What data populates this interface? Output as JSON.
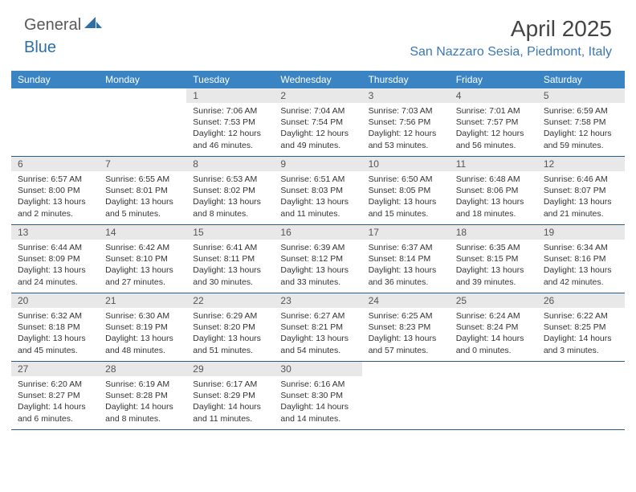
{
  "logo": {
    "part1": "General",
    "part2": "Blue"
  },
  "title": "April 2025",
  "location": "San Nazzaro Sesia, Piedmont, Italy",
  "colors": {
    "header_bg": "#3a84c4",
    "header_text": "#ffffff",
    "daynum_bg": "#e8e8e8",
    "daynum_text": "#555555",
    "row_border": "#2b5d8a",
    "location_text": "#3a78b5",
    "title_text": "#444444",
    "body_text": "#333333",
    "logo_gray": "#5a5a5a",
    "logo_blue": "#2f6fa8"
  },
  "weekdays": [
    "Sunday",
    "Monday",
    "Tuesday",
    "Wednesday",
    "Thursday",
    "Friday",
    "Saturday"
  ],
  "weeks": [
    [
      {
        "n": "",
        "sunrise": "",
        "sunset": "",
        "daylight": ""
      },
      {
        "n": "",
        "sunrise": "",
        "sunset": "",
        "daylight": ""
      },
      {
        "n": "1",
        "sunrise": "Sunrise: 7:06 AM",
        "sunset": "Sunset: 7:53 PM",
        "daylight": "Daylight: 12 hours and 46 minutes."
      },
      {
        "n": "2",
        "sunrise": "Sunrise: 7:04 AM",
        "sunset": "Sunset: 7:54 PM",
        "daylight": "Daylight: 12 hours and 49 minutes."
      },
      {
        "n": "3",
        "sunrise": "Sunrise: 7:03 AM",
        "sunset": "Sunset: 7:56 PM",
        "daylight": "Daylight: 12 hours and 53 minutes."
      },
      {
        "n": "4",
        "sunrise": "Sunrise: 7:01 AM",
        "sunset": "Sunset: 7:57 PM",
        "daylight": "Daylight: 12 hours and 56 minutes."
      },
      {
        "n": "5",
        "sunrise": "Sunrise: 6:59 AM",
        "sunset": "Sunset: 7:58 PM",
        "daylight": "Daylight: 12 hours and 59 minutes."
      }
    ],
    [
      {
        "n": "6",
        "sunrise": "Sunrise: 6:57 AM",
        "sunset": "Sunset: 8:00 PM",
        "daylight": "Daylight: 13 hours and 2 minutes."
      },
      {
        "n": "7",
        "sunrise": "Sunrise: 6:55 AM",
        "sunset": "Sunset: 8:01 PM",
        "daylight": "Daylight: 13 hours and 5 minutes."
      },
      {
        "n": "8",
        "sunrise": "Sunrise: 6:53 AM",
        "sunset": "Sunset: 8:02 PM",
        "daylight": "Daylight: 13 hours and 8 minutes."
      },
      {
        "n": "9",
        "sunrise": "Sunrise: 6:51 AM",
        "sunset": "Sunset: 8:03 PM",
        "daylight": "Daylight: 13 hours and 11 minutes."
      },
      {
        "n": "10",
        "sunrise": "Sunrise: 6:50 AM",
        "sunset": "Sunset: 8:05 PM",
        "daylight": "Daylight: 13 hours and 15 minutes."
      },
      {
        "n": "11",
        "sunrise": "Sunrise: 6:48 AM",
        "sunset": "Sunset: 8:06 PM",
        "daylight": "Daylight: 13 hours and 18 minutes."
      },
      {
        "n": "12",
        "sunrise": "Sunrise: 6:46 AM",
        "sunset": "Sunset: 8:07 PM",
        "daylight": "Daylight: 13 hours and 21 minutes."
      }
    ],
    [
      {
        "n": "13",
        "sunrise": "Sunrise: 6:44 AM",
        "sunset": "Sunset: 8:09 PM",
        "daylight": "Daylight: 13 hours and 24 minutes."
      },
      {
        "n": "14",
        "sunrise": "Sunrise: 6:42 AM",
        "sunset": "Sunset: 8:10 PM",
        "daylight": "Daylight: 13 hours and 27 minutes."
      },
      {
        "n": "15",
        "sunrise": "Sunrise: 6:41 AM",
        "sunset": "Sunset: 8:11 PM",
        "daylight": "Daylight: 13 hours and 30 minutes."
      },
      {
        "n": "16",
        "sunrise": "Sunrise: 6:39 AM",
        "sunset": "Sunset: 8:12 PM",
        "daylight": "Daylight: 13 hours and 33 minutes."
      },
      {
        "n": "17",
        "sunrise": "Sunrise: 6:37 AM",
        "sunset": "Sunset: 8:14 PM",
        "daylight": "Daylight: 13 hours and 36 minutes."
      },
      {
        "n": "18",
        "sunrise": "Sunrise: 6:35 AM",
        "sunset": "Sunset: 8:15 PM",
        "daylight": "Daylight: 13 hours and 39 minutes."
      },
      {
        "n": "19",
        "sunrise": "Sunrise: 6:34 AM",
        "sunset": "Sunset: 8:16 PM",
        "daylight": "Daylight: 13 hours and 42 minutes."
      }
    ],
    [
      {
        "n": "20",
        "sunrise": "Sunrise: 6:32 AM",
        "sunset": "Sunset: 8:18 PM",
        "daylight": "Daylight: 13 hours and 45 minutes."
      },
      {
        "n": "21",
        "sunrise": "Sunrise: 6:30 AM",
        "sunset": "Sunset: 8:19 PM",
        "daylight": "Daylight: 13 hours and 48 minutes."
      },
      {
        "n": "22",
        "sunrise": "Sunrise: 6:29 AM",
        "sunset": "Sunset: 8:20 PM",
        "daylight": "Daylight: 13 hours and 51 minutes."
      },
      {
        "n": "23",
        "sunrise": "Sunrise: 6:27 AM",
        "sunset": "Sunset: 8:21 PM",
        "daylight": "Daylight: 13 hours and 54 minutes."
      },
      {
        "n": "24",
        "sunrise": "Sunrise: 6:25 AM",
        "sunset": "Sunset: 8:23 PM",
        "daylight": "Daylight: 13 hours and 57 minutes."
      },
      {
        "n": "25",
        "sunrise": "Sunrise: 6:24 AM",
        "sunset": "Sunset: 8:24 PM",
        "daylight": "Daylight: 14 hours and 0 minutes."
      },
      {
        "n": "26",
        "sunrise": "Sunrise: 6:22 AM",
        "sunset": "Sunset: 8:25 PM",
        "daylight": "Daylight: 14 hours and 3 minutes."
      }
    ],
    [
      {
        "n": "27",
        "sunrise": "Sunrise: 6:20 AM",
        "sunset": "Sunset: 8:27 PM",
        "daylight": "Daylight: 14 hours and 6 minutes."
      },
      {
        "n": "28",
        "sunrise": "Sunrise: 6:19 AM",
        "sunset": "Sunset: 8:28 PM",
        "daylight": "Daylight: 14 hours and 8 minutes."
      },
      {
        "n": "29",
        "sunrise": "Sunrise: 6:17 AM",
        "sunset": "Sunset: 8:29 PM",
        "daylight": "Daylight: 14 hours and 11 minutes."
      },
      {
        "n": "30",
        "sunrise": "Sunrise: 6:16 AM",
        "sunset": "Sunset: 8:30 PM",
        "daylight": "Daylight: 14 hours and 14 minutes."
      },
      {
        "n": "",
        "sunrise": "",
        "sunset": "",
        "daylight": ""
      },
      {
        "n": "",
        "sunrise": "",
        "sunset": "",
        "daylight": ""
      },
      {
        "n": "",
        "sunrise": "",
        "sunset": "",
        "daylight": ""
      }
    ]
  ]
}
